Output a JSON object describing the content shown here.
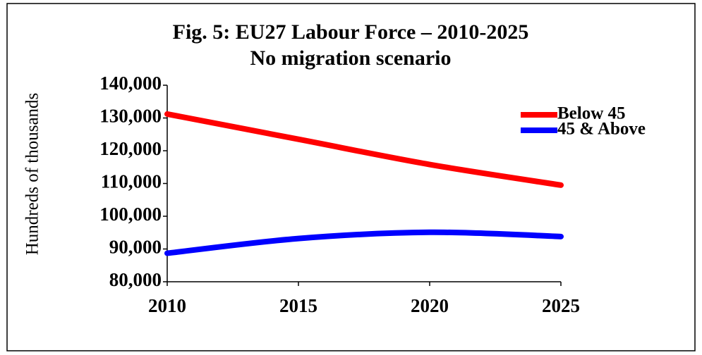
{
  "chart_data": {
    "type": "line",
    "title": "Fig. 5: EU27 Labour Force – 2010-2025",
    "subtitle": "No migration scenario",
    "y_label": "Hundreds of thousands",
    "x": [
      2010,
      2015,
      2020,
      2025
    ],
    "xlim": [
      2010,
      2025
    ],
    "xticks": [
      2010,
      2015,
      2020,
      2025
    ],
    "ylim": [
      80000,
      140000
    ],
    "yticks": [
      {
        "value": 80000,
        "label": "80,000"
      },
      {
        "value": 90000,
        "label": "90,000"
      },
      {
        "value": 100000,
        "label": "100,000"
      },
      {
        "value": 110000,
        "label": "110,000"
      },
      {
        "value": 120000,
        "label": "120,000"
      },
      {
        "value": 130000,
        "label": "130,000"
      },
      {
        "value": 140000,
        "label": "140,000"
      }
    ],
    "grid": false,
    "legend": "top-right",
    "series": [
      {
        "name": "Below 45",
        "color": "#ff0000",
        "values": [
          131200,
          123500,
          115800,
          109500
        ]
      },
      {
        "name": "45 & Above",
        "color": "#0000ff",
        "values": [
          88700,
          93200,
          95100,
          93800
        ]
      }
    ]
  }
}
